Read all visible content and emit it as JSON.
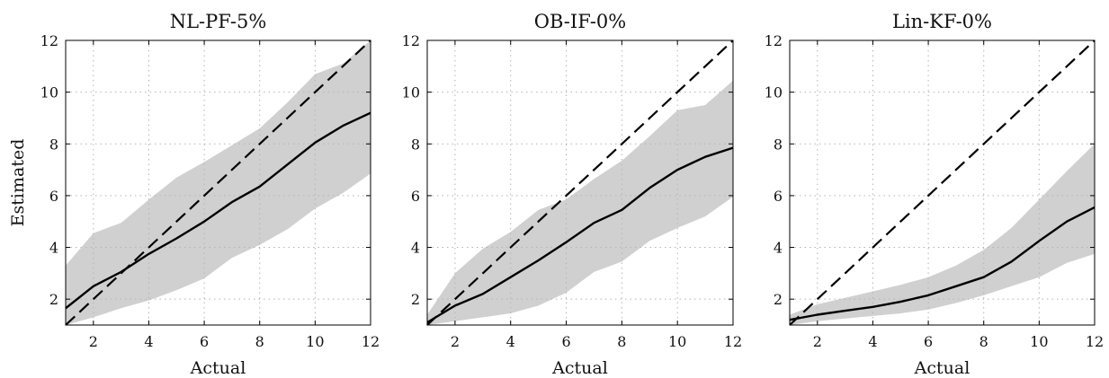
{
  "chart_data": [
    {
      "type": "line",
      "title": "NL-PF-5%",
      "xlabel": "Actual",
      "ylabel": "Estimated",
      "xlim": [
        1,
        12
      ],
      "ylim": [
        1,
        12
      ],
      "xticks": [
        "2",
        "4",
        "6",
        "8",
        "10",
        "12"
      ],
      "yticks": [
        "2",
        "4",
        "6",
        "8",
        "10",
        "12"
      ],
      "grid": true,
      "x": [
        1,
        2,
        3,
        4,
        5,
        6,
        7,
        8,
        9,
        10,
        11,
        12
      ],
      "series": [
        {
          "role": "estimate-mean",
          "values": [
            1.65,
            2.5,
            3.05,
            3.75,
            4.35,
            5.0,
            5.75,
            6.35,
            7.2,
            8.05,
            8.7,
            9.2
          ]
        },
        {
          "role": "band-upper",
          "values": [
            3.3,
            4.55,
            4.95,
            5.85,
            6.7,
            7.3,
            7.95,
            8.6,
            9.6,
            10.7,
            11.1,
            12.0
          ]
        },
        {
          "role": "band-lower",
          "values": [
            1.0,
            1.3,
            1.65,
            1.95,
            2.35,
            2.8,
            3.6,
            4.1,
            4.7,
            5.5,
            6.1,
            6.85
          ]
        },
        {
          "role": "identity",
          "values": [
            1,
            2,
            3,
            4,
            5,
            6,
            7,
            8,
            9,
            10,
            11,
            12
          ]
        }
      ]
    },
    {
      "type": "line",
      "title": "OB-IF-0%",
      "xlabel": "Actual",
      "ylabel": "",
      "xlim": [
        1,
        12
      ],
      "ylim": [
        1,
        12
      ],
      "xticks": [
        "2",
        "4",
        "6",
        "8",
        "10",
        "12"
      ],
      "yticks": [
        "2",
        "4",
        "6",
        "8",
        "10",
        "12"
      ],
      "grid": true,
      "x": [
        1,
        2,
        3,
        4,
        5,
        6,
        7,
        8,
        9,
        10,
        11,
        12
      ],
      "series": [
        {
          "role": "estimate-mean",
          "values": [
            1.1,
            1.75,
            2.2,
            2.85,
            3.5,
            4.2,
            4.95,
            5.45,
            6.3,
            7.0,
            7.5,
            7.85
          ]
        },
        {
          "role": "band-upper",
          "values": [
            1.4,
            3.0,
            3.95,
            4.6,
            5.45,
            5.85,
            6.65,
            7.35,
            8.3,
            9.3,
            9.5,
            10.45
          ]
        },
        {
          "role": "band-lower",
          "values": [
            1.0,
            1.15,
            1.3,
            1.45,
            1.75,
            2.25,
            3.05,
            3.45,
            4.25,
            4.75,
            5.2,
            5.95
          ]
        },
        {
          "role": "identity",
          "values": [
            1,
            2,
            3,
            4,
            5,
            6,
            7,
            8,
            9,
            10,
            11,
            12
          ]
        }
      ]
    },
    {
      "type": "line",
      "title": "Lin-KF-0%",
      "xlabel": "Actual",
      "ylabel": "",
      "xlim": [
        1,
        12
      ],
      "ylim": [
        1,
        12
      ],
      "xticks": [
        "2",
        "4",
        "6",
        "8",
        "10",
        "12"
      ],
      "yticks": [
        "2",
        "4",
        "6",
        "8",
        "10",
        "12"
      ],
      "grid": true,
      "x": [
        1,
        2,
        3,
        4,
        5,
        6,
        7,
        8,
        9,
        10,
        11,
        12
      ],
      "series": [
        {
          "role": "estimate-mean",
          "values": [
            1.2,
            1.4,
            1.55,
            1.7,
            1.9,
            2.15,
            2.5,
            2.85,
            3.45,
            4.25,
            5.0,
            5.55
          ]
        },
        {
          "role": "band-upper",
          "values": [
            1.4,
            1.8,
            2.05,
            2.3,
            2.55,
            2.85,
            3.3,
            3.9,
            4.75,
            5.85,
            6.95,
            8.0
          ]
        },
        {
          "role": "band-lower",
          "values": [
            1.0,
            1.15,
            1.25,
            1.35,
            1.45,
            1.6,
            1.85,
            2.15,
            2.5,
            2.85,
            3.4,
            3.75
          ]
        },
        {
          "role": "identity",
          "values": [
            1,
            2,
            3,
            4,
            5,
            6,
            7,
            8,
            9,
            10,
            11,
            12
          ]
        }
      ]
    }
  ]
}
